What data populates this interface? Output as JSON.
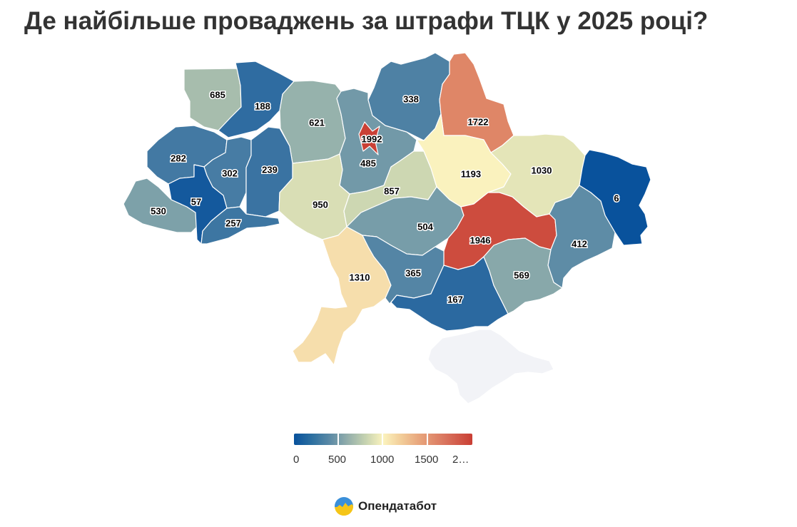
{
  "title": "Де найбільше проваджень за штрафи ТЦК у 2025 році?",
  "map_data": {
    "type": "choropleth",
    "color_scale": {
      "min": 0,
      "max": 2000,
      "stops": [
        "#08519c",
        "#5b8aa6",
        "#c5d2b0",
        "#fbf3be",
        "#e8a67d",
        "#c93e34"
      ]
    },
    "regions": [
      {
        "id": "volyn",
        "value": 685
      },
      {
        "id": "rivne",
        "value": 188
      },
      {
        "id": "zhytomyr",
        "value": 621
      },
      {
        "id": "kyiv-oblast",
        "value": 485
      },
      {
        "id": "kyiv-city",
        "value": 1992
      },
      {
        "id": "chernihiv",
        "value": 338
      },
      {
        "id": "sumy",
        "value": 1722
      },
      {
        "id": "lviv",
        "value": 282
      },
      {
        "id": "ternopil",
        "value": 302
      },
      {
        "id": "khmelnytskyi",
        "value": 239
      },
      {
        "id": "zakarpattia",
        "value": 530
      },
      {
        "id": "ivano-frankivsk",
        "value": 57
      },
      {
        "id": "chernivtsi",
        "value": 257
      },
      {
        "id": "vinnytsia",
        "value": 950
      },
      {
        "id": "cherkasy",
        "value": 857
      },
      {
        "id": "poltava",
        "value": 1193
      },
      {
        "id": "kharkiv",
        "value": 1030
      },
      {
        "id": "luhansk",
        "value": 6
      },
      {
        "id": "kirovohrad",
        "value": 504
      },
      {
        "id": "dnipropetrovsk",
        "value": 1946
      },
      {
        "id": "donetsk",
        "value": 412
      },
      {
        "id": "odesa",
        "value": 1310
      },
      {
        "id": "mykolaiv",
        "value": 365
      },
      {
        "id": "kherson",
        "value": 167
      },
      {
        "id": "zaporizhzhia",
        "value": 569
      },
      {
        "id": "crimea",
        "value": null
      }
    ]
  },
  "legend": {
    "ticks": [
      "0",
      "500",
      "1000",
      "1500",
      "2…"
    ]
  },
  "brand": {
    "name": "Опендатабот"
  }
}
